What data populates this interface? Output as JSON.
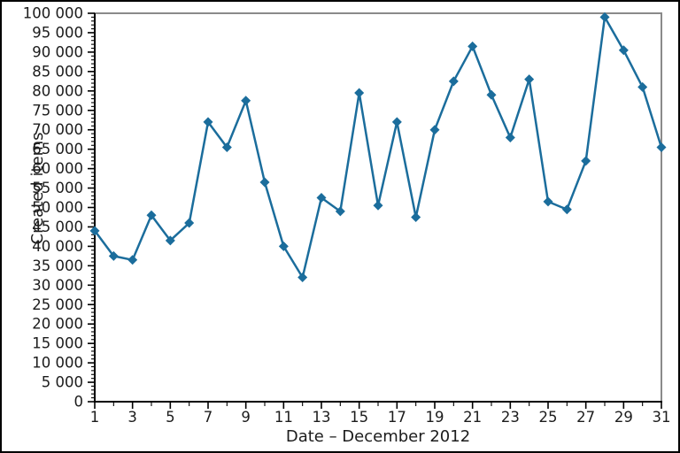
{
  "chart_data": {
    "type": "line",
    "title": "",
    "xlabel": "Date – December 2012",
    "ylabel": "Created items",
    "x": [
      1,
      2,
      3,
      4,
      5,
      6,
      7,
      8,
      9,
      10,
      11,
      12,
      13,
      14,
      15,
      16,
      17,
      18,
      19,
      20,
      21,
      22,
      23,
      24,
      25,
      26,
      27,
      28,
      29,
      30,
      31
    ],
    "values": [
      44000,
      37500,
      36500,
      48000,
      41500,
      46000,
      72000,
      65500,
      77500,
      56500,
      40000,
      32000,
      52500,
      49000,
      79500,
      50500,
      72000,
      47500,
      70000,
      82500,
      91500,
      79000,
      68000,
      83000,
      51500,
      49500,
      62000,
      99000,
      90500,
      81000,
      65500
    ],
    "series_name": "Created items",
    "xlim": [
      1,
      31
    ],
    "ylim": [
      0,
      100000
    ],
    "x_major_ticks": [
      1,
      3,
      5,
      7,
      9,
      11,
      13,
      15,
      17,
      19,
      21,
      23,
      25,
      27,
      29,
      31
    ],
    "x_tick_labels": [
      "1",
      "3",
      "5",
      "7",
      "9",
      "11",
      "13",
      "15",
      "17",
      "19",
      "21",
      "23",
      "25",
      "27",
      "29",
      "31"
    ],
    "x_minor_tick_step": 1,
    "y_major_tick_step": 5000,
    "y_minor_tick_step": 1000,
    "y_tick_labels": [
      "0",
      "5 000",
      "10 000",
      "15 000",
      "20 000",
      "25 000",
      "30 000",
      "35 000",
      "40 000",
      "45 000",
      "50 000",
      "55 000",
      "60 000",
      "65 000",
      "70 000",
      "75 000",
      "80 000",
      "85 000",
      "90 000",
      "95 000",
      "100 000"
    ],
    "grid": false,
    "legend": "none",
    "marker": "diamond",
    "line_color": "#1b6d9c",
    "marker_color": "#1b6d9c",
    "axis_color": "#000000",
    "plot_border_color": "#8a8a8a",
    "outer_border_color": "#000000",
    "background": "#ffffff"
  }
}
